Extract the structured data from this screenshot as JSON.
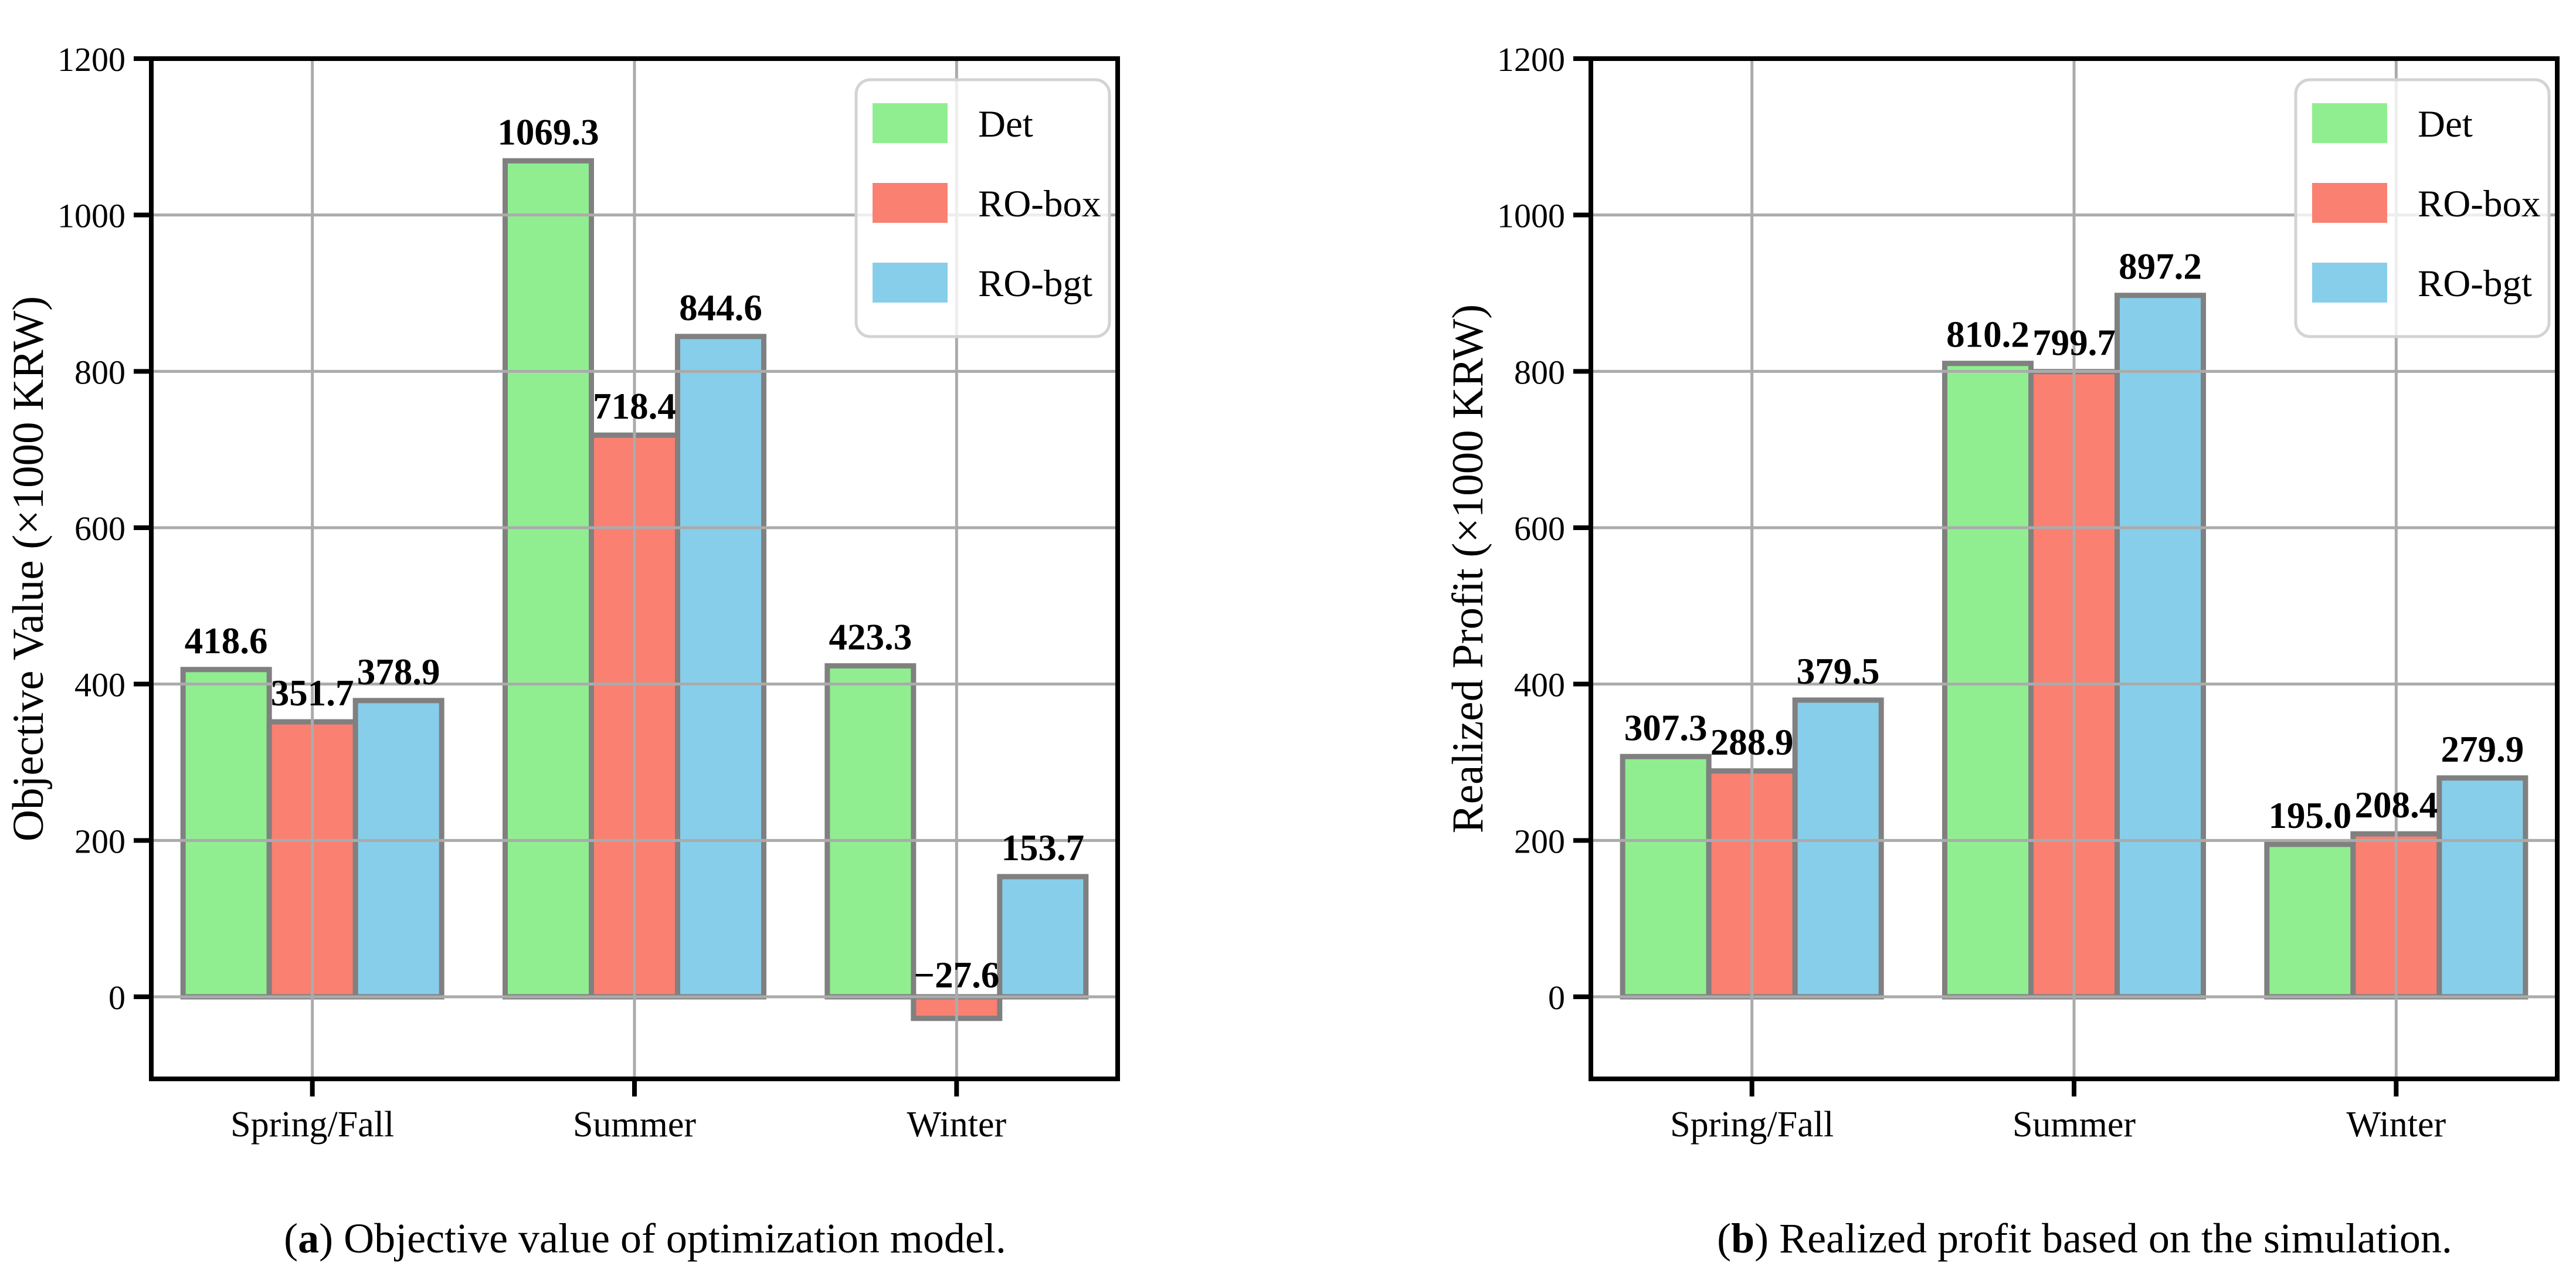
{
  "figure": {
    "background": "#ffffff",
    "grid_color": "#ababab",
    "spine_color": "#000000",
    "bar_edge_color": "#808080",
    "legend_border_color": "#d3d3d3",
    "text_color": "#000000"
  },
  "legend": {
    "labels": [
      "Det",
      "RO-box",
      "RO-bgt"
    ]
  },
  "chart_data": [
    {
      "type": "bar",
      "panel": "a",
      "ylabel": "Objective Value (×1000 KRW)",
      "xlabel": "",
      "categories": [
        "Spring/Fall",
        "Summer",
        "Winter"
      ],
      "series": [
        {
          "name": "Det",
          "color": "#90EE90",
          "values": [
            418.6,
            1069.3,
            423.3
          ]
        },
        {
          "name": "RO-box",
          "color": "#FA8072",
          "values": [
            351.7,
            718.4,
            -27.6
          ]
        },
        {
          "name": "RO-bgt",
          "color": "#87CEEB",
          "values": [
            378.9,
            844.6,
            153.7
          ]
        }
      ],
      "ylim": [
        -105,
        1200
      ],
      "yticks": [
        0,
        200,
        400,
        600,
        800,
        1000,
        1200
      ],
      "grid": true,
      "legend_position": "upper right",
      "caption": {
        "open": "(",
        "letter": "a",
        "close": ")",
        "text": " Objective value of optimization model."
      }
    },
    {
      "type": "bar",
      "panel": "b",
      "ylabel": "Realized Profit (×1000 KRW)",
      "xlabel": "",
      "categories": [
        "Spring/Fall",
        "Summer",
        "Winter"
      ],
      "series": [
        {
          "name": "Det",
          "color": "#90EE90",
          "values": [
            307.3,
            810.2,
            195.0
          ]
        },
        {
          "name": "RO-box",
          "color": "#FA8072",
          "values": [
            288.9,
            799.7,
            208.4
          ]
        },
        {
          "name": "RO-bgt",
          "color": "#87CEEB",
          "values": [
            379.5,
            897.2,
            279.9
          ]
        }
      ],
      "ylim": [
        -105,
        1200
      ],
      "yticks": [
        0,
        200,
        400,
        600,
        800,
        1000,
        1200
      ],
      "grid": true,
      "legend_position": "upper right",
      "caption": {
        "open": "(",
        "letter": "b",
        "close": ")",
        "text": " Realized profit based on the simulation."
      }
    }
  ]
}
